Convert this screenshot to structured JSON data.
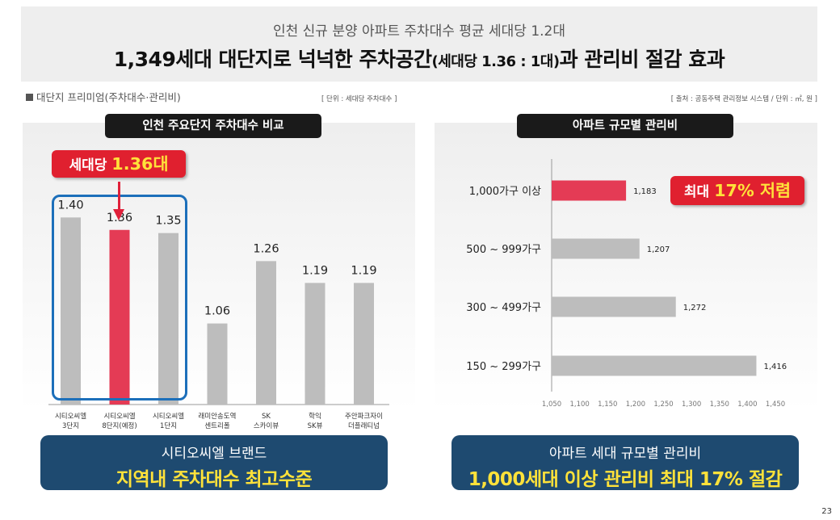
{
  "header": {
    "subtitle": "인천 신규 분양 아파트 주차대수 평균 세대당 1.2대",
    "title_part1": "1,349세대 대단지로 넉넉한 주차공간",
    "title_part2": "(세대당 1.36 : 1대)",
    "title_part3": "과 관리비 절감 효과"
  },
  "section_label": "대단지 프리미엄(주차대수·관리비)",
  "unit_left": "[ 단위 : 세대당 주차대수 ]",
  "unit_right": "[ 출처 : 공동주택 관리정보 시스템 / 단위 : ㎡, 원 ]",
  "left_panel": {
    "title": "인천 주요단지 주차대수 비교",
    "badge_text": "세대당 ",
    "badge_highlight": "1.36대",
    "banner_line1": "시티오씨엘 브랜드",
    "banner_line2": "지역내 주차대수 최고수준"
  },
  "right_panel": {
    "title": "아파트 규모별 관리비",
    "badge_text": "최대 ",
    "badge_highlight": "17% 저렴",
    "banner_line1": "아파트 세대 규모별 관리비",
    "banner_line2": "1,000세대 이상 관리비 최대 17% 절감"
  },
  "page_number": "23",
  "colors": {
    "highlight_red": "#e43b55",
    "bar_gray": "#bdbdbd",
    "badge_red": "#e0202f",
    "badge_yellow": "#ffe23a",
    "box_blue": "#1c6fba",
    "banner_navy": "#1e4a70"
  },
  "chart_data": [
    {
      "type": "bar",
      "title": "인천 주요단지 주차대수 비교",
      "categories": [
        [
          "시티오씨엘",
          "3단지"
        ],
        [
          "시티오씨엘",
          "8단지(예정)"
        ],
        [
          "시티오씨엘",
          "1단지"
        ],
        [
          "래미안송도역",
          "센트리폴"
        ],
        [
          "SK",
          "스카이뷰"
        ],
        [
          "학익",
          "SK뷰"
        ],
        [
          "주안파크자이",
          "더플래티넘"
        ]
      ],
      "values": [
        1.4,
        1.36,
        1.35,
        1.06,
        1.26,
        1.19,
        1.19
      ],
      "value_labels": [
        "1.40",
        "1.36",
        "1.35",
        "1.06",
        "1.26",
        "1.19",
        "1.19"
      ],
      "highlight_index": 1,
      "ylim": [
        0.8,
        1.45
      ],
      "grid": false,
      "legend": "none"
    },
    {
      "type": "bar",
      "orientation": "horizontal",
      "title": "아파트 규모별 관리비",
      "categories": [
        "1,000가구 이상",
        "500 ~ 999가구",
        "300 ~ 499가구",
        "150 ~ 299가구"
      ],
      "values": [
        1183,
        1207,
        1272,
        1416
      ],
      "value_labels": [
        "1,183",
        "1,207",
        "1,272",
        "1,416"
      ],
      "highlight_index": 0,
      "xlim": [
        1050,
        1450
      ],
      "xticks": [
        "1,050",
        "1,100",
        "1,150",
        "1,200",
        "1,250",
        "1,300",
        "1,350",
        "1,400",
        "1,450"
      ],
      "grid": false,
      "legend": "none"
    }
  ]
}
